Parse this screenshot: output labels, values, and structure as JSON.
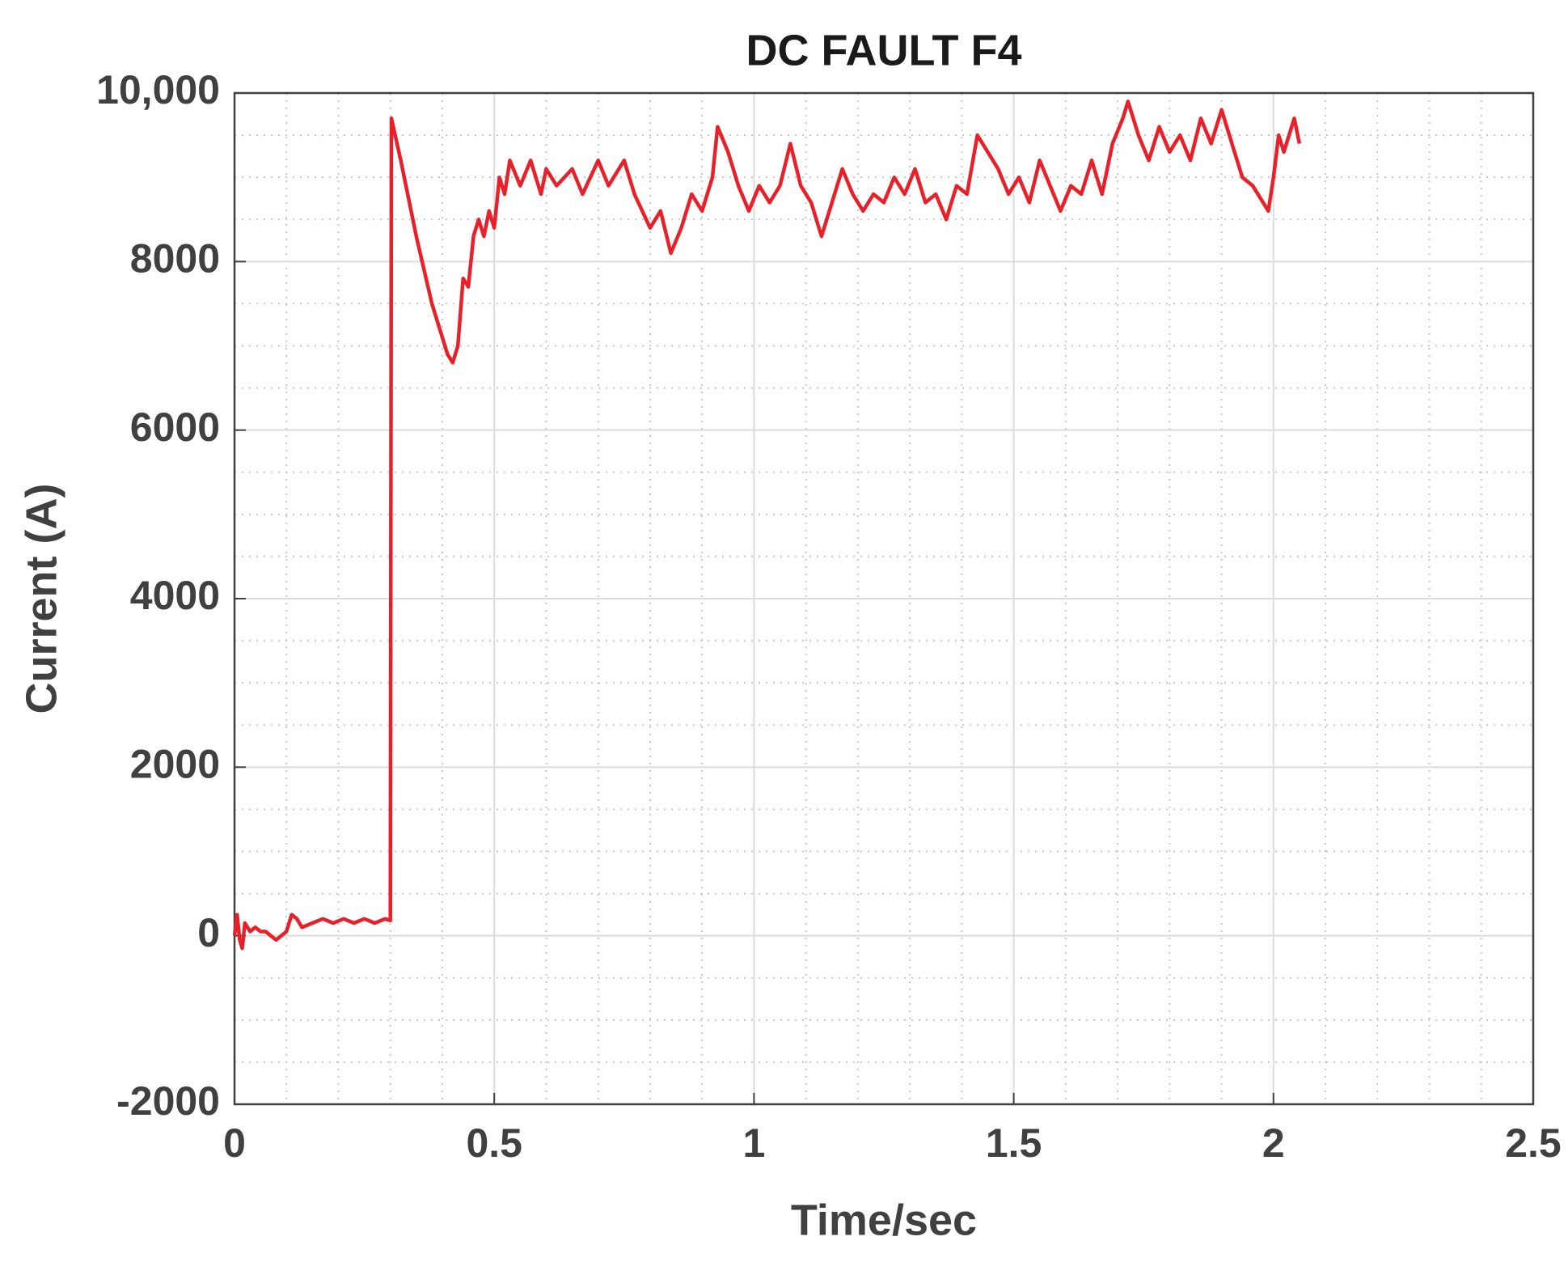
{
  "chart_data": {
    "type": "line",
    "title": "DC FAULT F4",
    "x_label": "Time/sec",
    "y_label": "Current (A)",
    "x": [
      0,
      0.005,
      0.01,
      0.015,
      0.02,
      0.03,
      0.04,
      0.05,
      0.06,
      0.07,
      0.08,
      0.09,
      0.1,
      0.11,
      0.12,
      0.13,
      0.15,
      0.17,
      0.19,
      0.21,
      0.23,
      0.25,
      0.27,
      0.29,
      0.3,
      0.302,
      0.32,
      0.35,
      0.38,
      0.41,
      0.42,
      0.43,
      0.44,
      0.45,
      0.46,
      0.47,
      0.48,
      0.49,
      0.5,
      0.51,
      0.52,
      0.53,
      0.55,
      0.57,
      0.59,
      0.6,
      0.62,
      0.65,
      0.67,
      0.7,
      0.72,
      0.75,
      0.77,
      0.8,
      0.82,
      0.84,
      0.86,
      0.88,
      0.9,
      0.92,
      0.93,
      0.95,
      0.97,
      0.99,
      1.01,
      1.03,
      1.05,
      1.07,
      1.09,
      1.11,
      1.13,
      1.15,
      1.17,
      1.19,
      1.21,
      1.23,
      1.25,
      1.27,
      1.29,
      1.31,
      1.33,
      1.35,
      1.37,
      1.39,
      1.41,
      1.43,
      1.45,
      1.47,
      1.49,
      1.51,
      1.53,
      1.55,
      1.57,
      1.59,
      1.61,
      1.63,
      1.65,
      1.67,
      1.69,
      1.71,
      1.72,
      1.74,
      1.76,
      1.78,
      1.8,
      1.82,
      1.84,
      1.86,
      1.88,
      1.9,
      1.92,
      1.94,
      1.96,
      1.98,
      1.99,
      2.0,
      2.01,
      2.02,
      2.04,
      2.05
    ],
    "series": [
      {
        "name": "Current",
        "color": "#e8202a",
        "values": [
          0,
          250,
          -50,
          -150,
          150,
          50,
          100,
          50,
          50,
          0,
          -50,
          0,
          50,
          250,
          200,
          100,
          150,
          200,
          150,
          200,
          150,
          200,
          150,
          200,
          180,
          9700,
          9200,
          8300,
          7500,
          6900,
          6800,
          7000,
          7800,
          7700,
          8300,
          8500,
          8300,
          8600,
          8400,
          9000,
          8800,
          9200,
          8900,
          9200,
          8800,
          9100,
          8900,
          9100,
          8800,
          9200,
          8900,
          9200,
          8800,
          8400,
          8600,
          8100,
          8400,
          8800,
          8600,
          9000,
          9600,
          9300,
          8900,
          8600,
          8900,
          8700,
          8900,
          9400,
          8900,
          8700,
          8300,
          8700,
          9100,
          8800,
          8600,
          8800,
          8700,
          9000,
          8800,
          9100,
          8700,
          8800,
          8500,
          8900,
          8800,
          9500,
          9300,
          9100,
          8800,
          9000,
          8700,
          9200,
          8900,
          8600,
          8900,
          8800,
          9200,
          8800,
          9400,
          9700,
          9900,
          9500,
          9200,
          9600,
          9300,
          9500,
          9200,
          9700,
          9400,
          9800,
          9400,
          9000,
          8900,
          8700,
          8600,
          9000,
          9500,
          9300,
          9700,
          9400
        ]
      }
    ],
    "xlim": [
      0,
      2.5
    ],
    "xticks": [
      0,
      0.5,
      1,
      1.5,
      2,
      2.5
    ],
    "ylim": [
      -2000,
      10000
    ],
    "yticks": [
      -2000,
      0,
      2000,
      4000,
      6000,
      8000,
      {
        "value": 10000,
        "label": "10,000"
      }
    ],
    "grid": true,
    "minor_grid": true
  }
}
